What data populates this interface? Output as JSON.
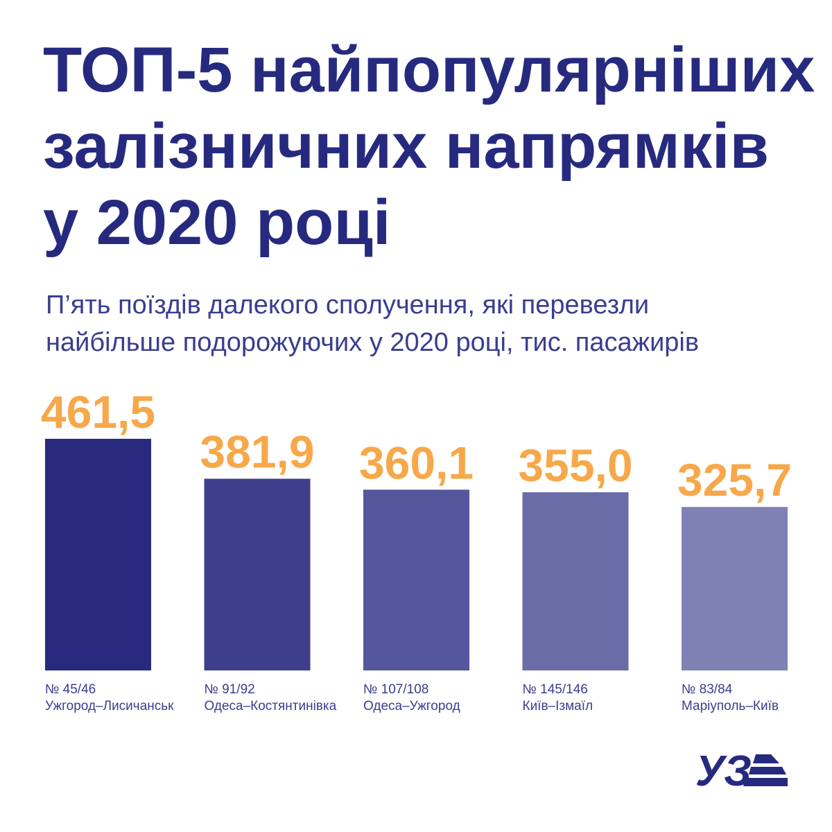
{
  "chart_data": {
    "type": "bar",
    "title": [
      "ТОП-5 найпопулярніших",
      "залізничних напрямків",
      "у 2020 році"
    ],
    "subtitle": [
      "П’ять поїздів далекого сполучення, які перевезли",
      "найбільше подорожуючих у 2020 році, тис. пасажирів"
    ],
    "categories": [
      "№ 45/46",
      "№ 91/92",
      "№ 107/108",
      "№ 145/146",
      "№ 83/84"
    ],
    "routes": [
      "Ужгород–Лисичанськ",
      "Одеса–Костянтинівка",
      "Одеса–Ужгород",
      "Київ–Ізмаїл",
      "Маріуполь–Київ"
    ],
    "values": [
      461.5,
      381.9,
      360.1,
      355.0,
      325.7
    ],
    "value_labels": [
      "461,5",
      "381,9",
      "360,1",
      "355,0",
      "325,7"
    ],
    "colors": [
      "#272a7e",
      "#3d3f8c",
      "#54579b",
      "#6a6ca8",
      "#7f80b4"
    ],
    "value_label_color": "#f7a84a",
    "logo": "УЗ"
  }
}
